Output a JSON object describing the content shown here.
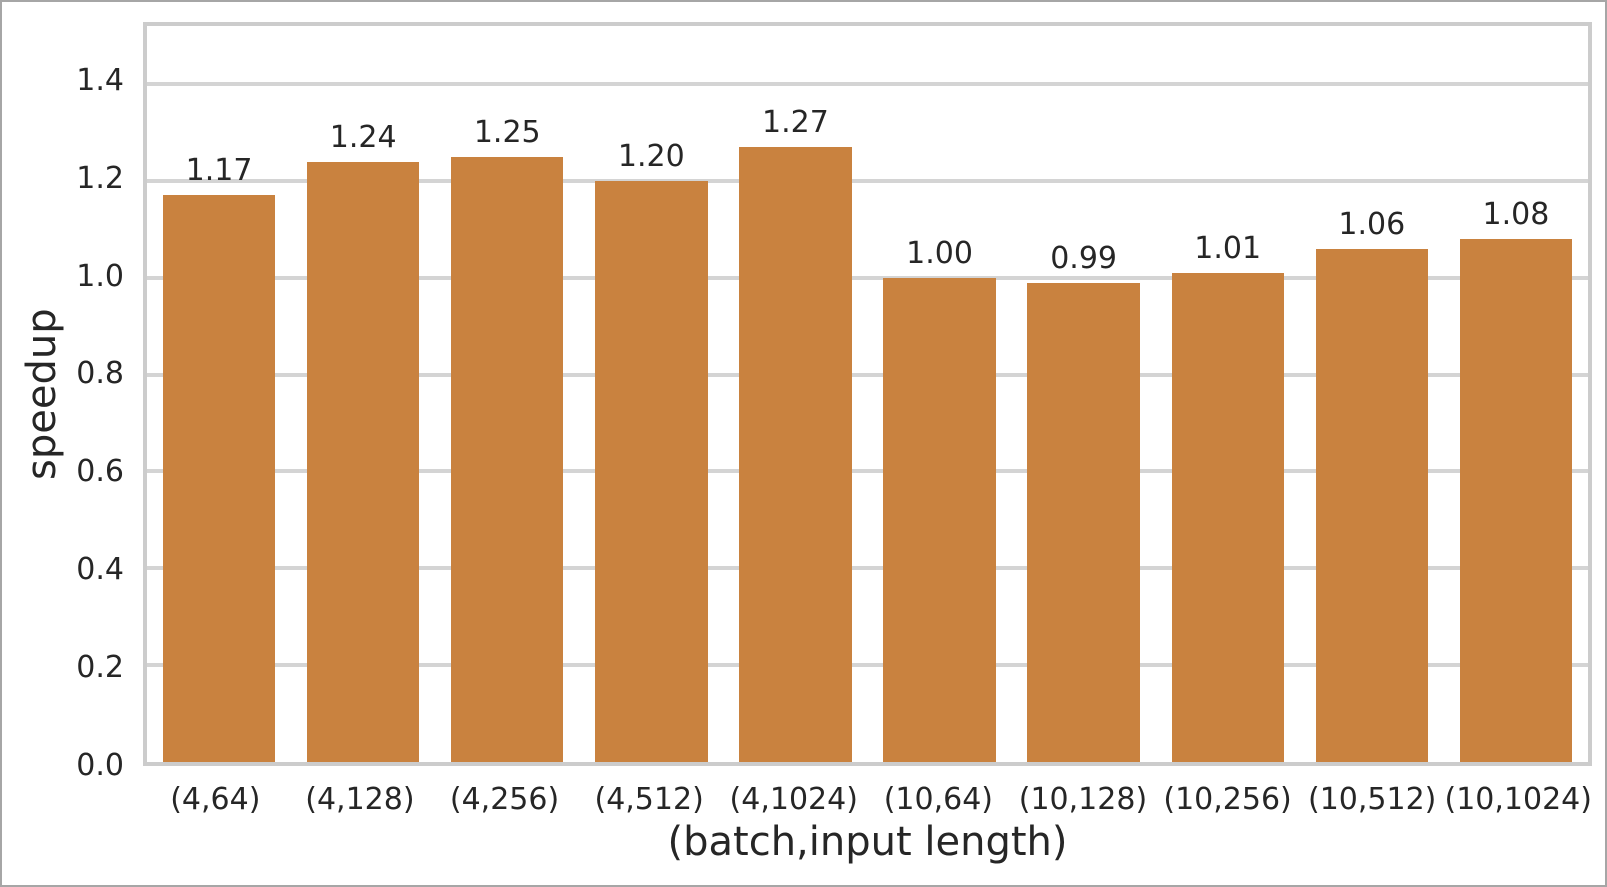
{
  "chart_data": {
    "type": "bar",
    "categories": [
      "(4,64)",
      "(4,128)",
      "(4,256)",
      "(4,512)",
      "(4,1024)",
      "(10,64)",
      "(10,128)",
      "(10,256)",
      "(10,512)",
      "(10,1024)"
    ],
    "values": [
      1.17,
      1.24,
      1.25,
      1.2,
      1.27,
      1.0,
      0.99,
      1.01,
      1.06,
      1.08
    ],
    "bar_labels": [
      "1.17",
      "1.24",
      "1.25",
      "1.20",
      "1.27",
      "1.00",
      "0.99",
      "1.01",
      "1.06",
      "1.08"
    ],
    "title": "",
    "xlabel": "(batch,input length)",
    "ylabel": "speedup",
    "ylim": [
      0,
      1.52
    ],
    "yticks": [
      0.0,
      0.2,
      0.4,
      0.6,
      0.8,
      1.0,
      1.2,
      1.4
    ],
    "grid": true,
    "legend": "none",
    "colors": {
      "bar": "#c9823f",
      "grid": "#d4d4d4",
      "spine": "#cccccc",
      "text": "#262626"
    }
  }
}
